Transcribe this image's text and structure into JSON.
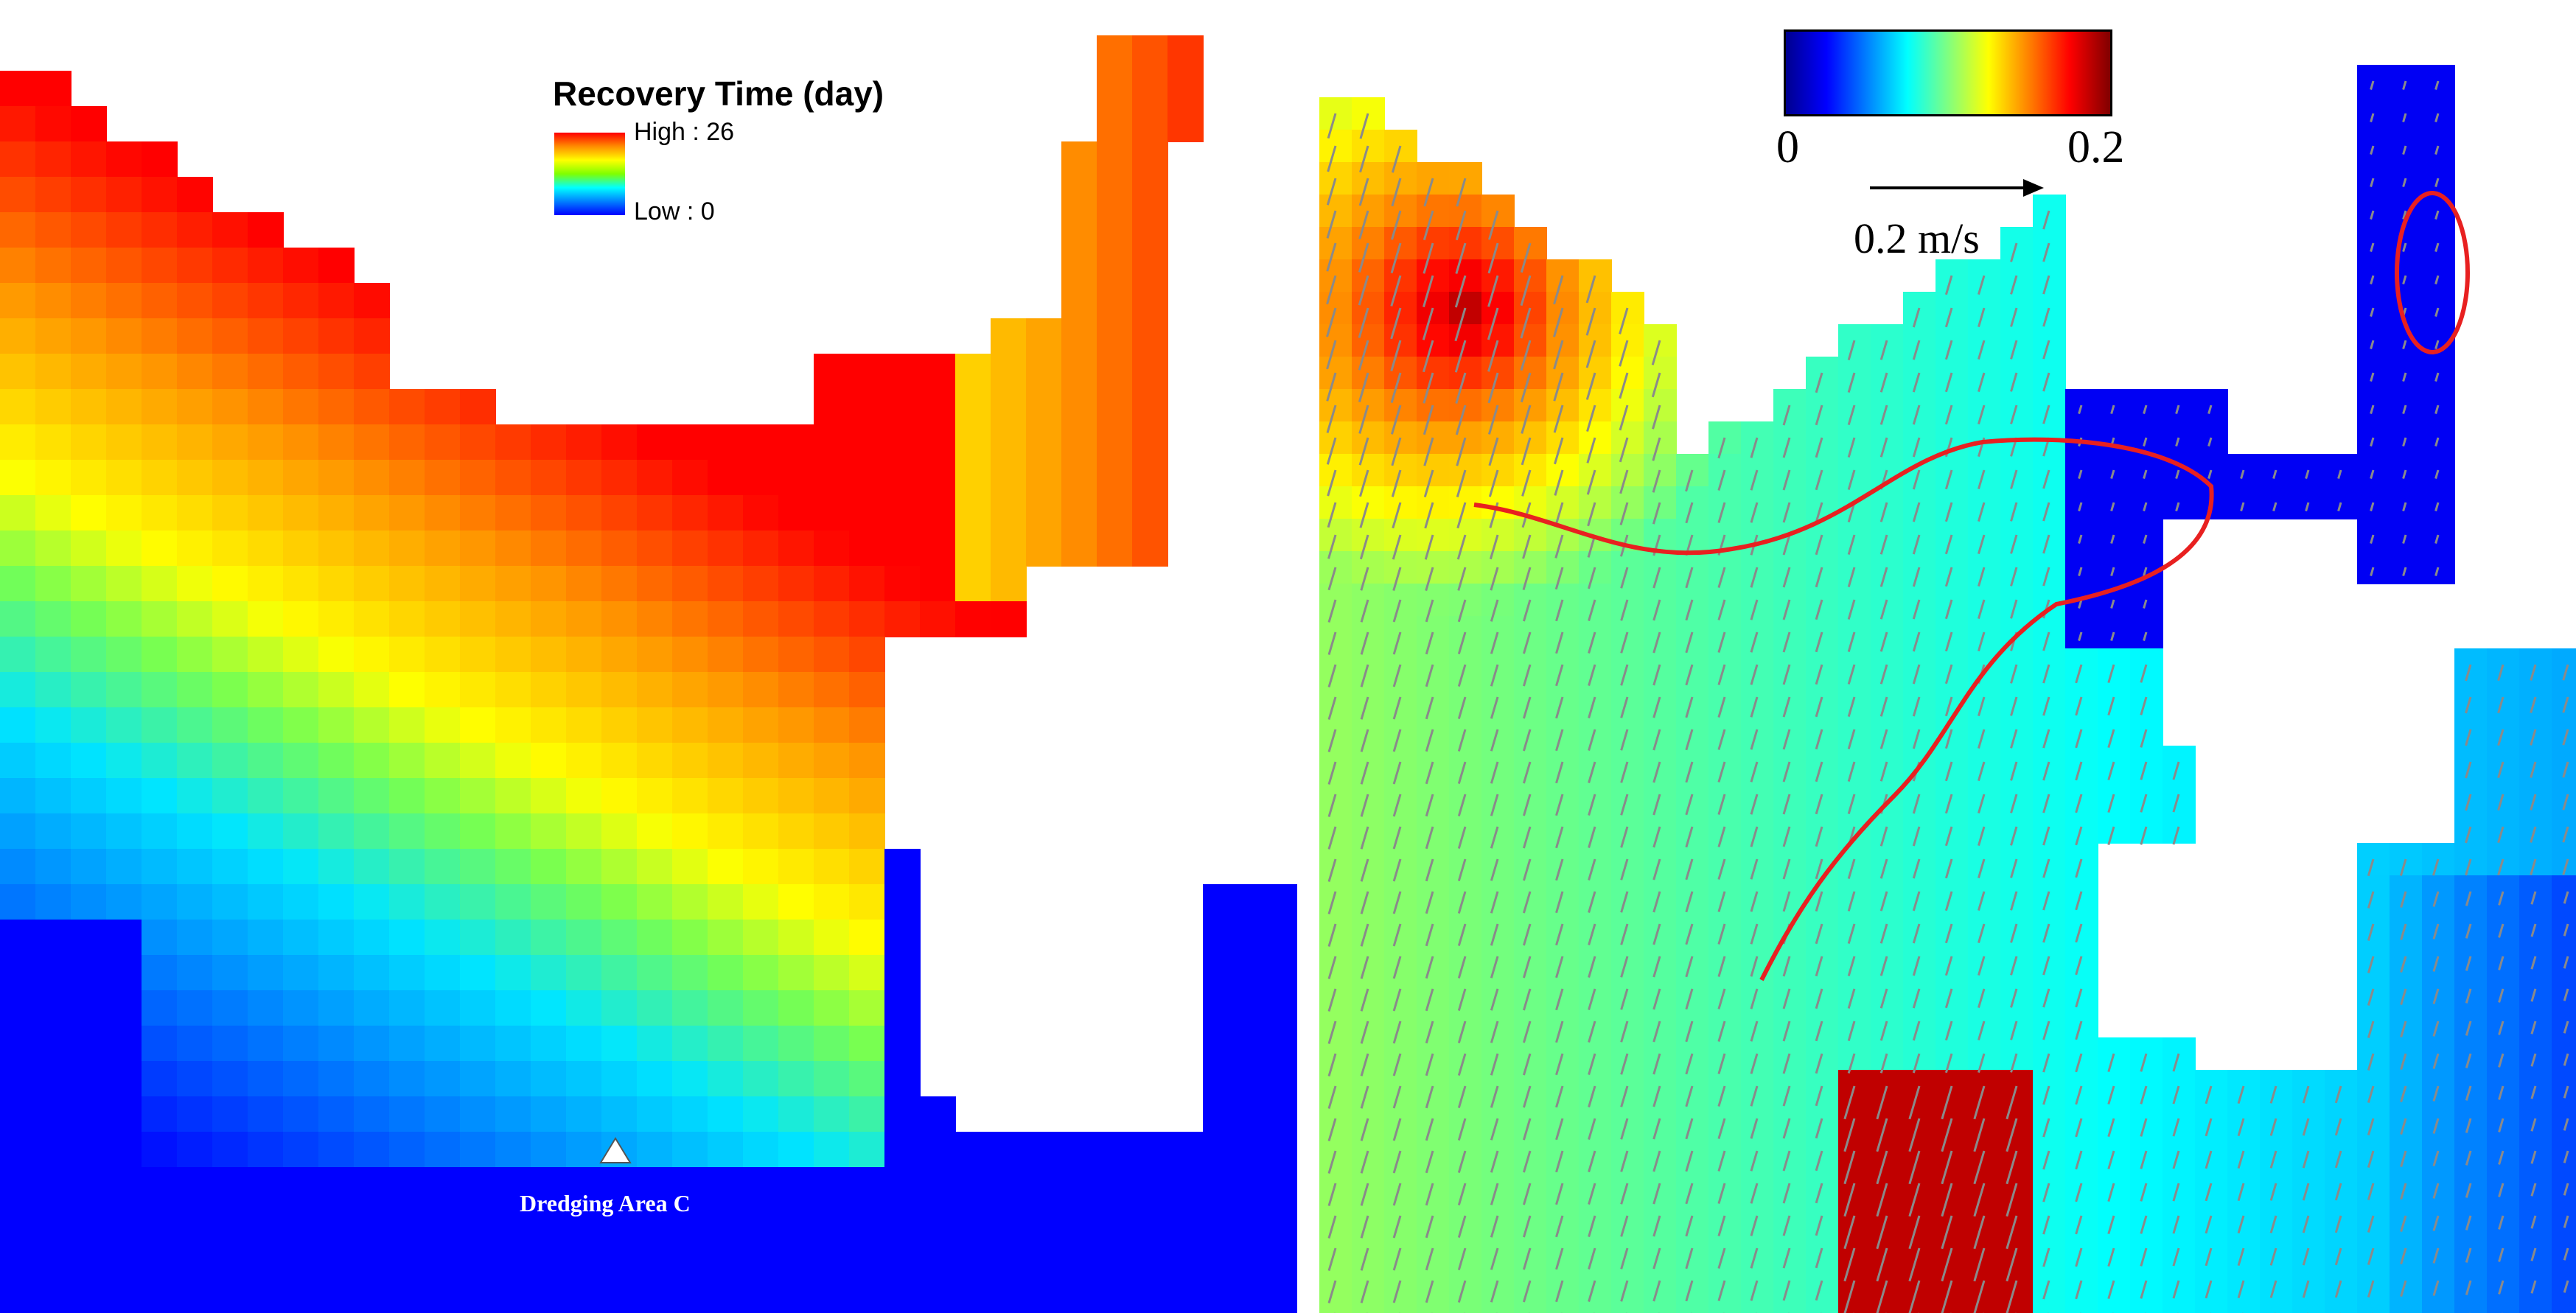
{
  "left_map": {
    "legend": {
      "title": "Recovery Time (day)",
      "high_label": "High : 26",
      "low_label": "Low : 0",
      "ramp_colors": [
        "#ff0000",
        "#ff8c00",
        "#ffff00",
        "#7fff00",
        "#00ffff",
        "#0080ff",
        "#0000ff"
      ]
    },
    "marker": {
      "label": "Dredging Area C",
      "icon": "triangle-marker-icon"
    }
  },
  "right_map": {
    "colorbar": {
      "min_label": "0",
      "max_label": "0.2",
      "colors": [
        "#00008f",
        "#0000ff",
        "#0080ff",
        "#00ffff",
        "#80ff80",
        "#ffff00",
        "#ff8000",
        "#ff0000",
        "#800000"
      ]
    },
    "scale_arrow": {
      "label": "0.2 m/s",
      "icon": "arrow-right-icon"
    },
    "flow_lines_color": "#e82020",
    "vector_color": "#8a8a8a"
  }
}
